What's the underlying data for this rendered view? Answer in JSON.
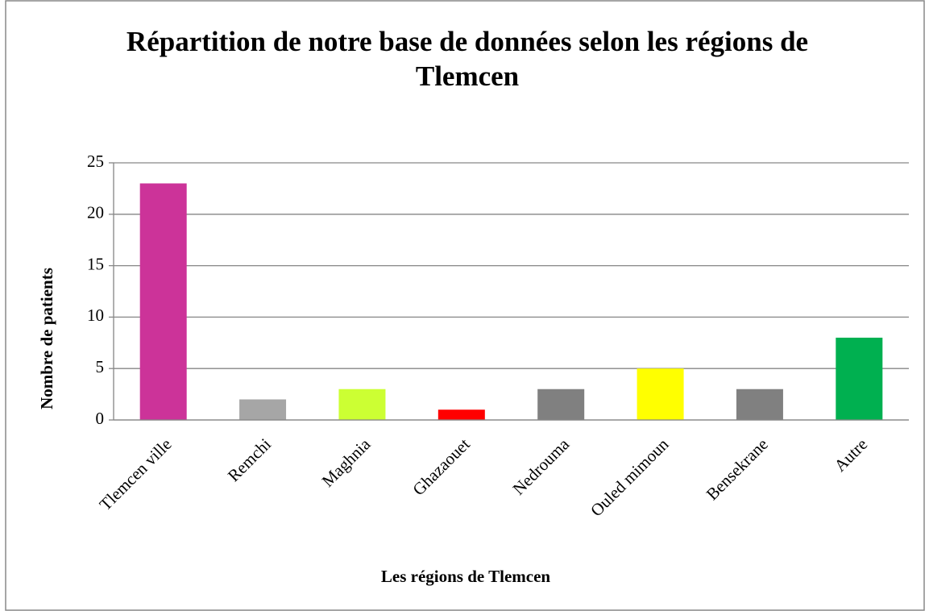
{
  "chart_data": {
    "type": "bar",
    "title": "Répartition de notre base de données selon les régions de Tlemcen",
    "x_label": "Les régions de Tlemcen",
    "y_label": "Nombre de patients",
    "categories": [
      "Tlemcen ville",
      "Remchi",
      "Maghnia",
      "Ghazaouet",
      "Nedrouma",
      "Ouled mimoun",
      "Bensekrane",
      "Autre"
    ],
    "values": [
      23,
      2,
      3,
      1,
      3,
      5,
      3,
      8
    ],
    "colors": [
      "#cc3399",
      "#a6a6a6",
      "#ccff33",
      "#ff0000",
      "#808080",
      "#ffff00",
      "#808080",
      "#00b050"
    ],
    "ylim": [
      0,
      25
    ],
    "yticks": [
      0,
      5,
      10,
      15,
      20,
      25
    ],
    "grid": true
  }
}
